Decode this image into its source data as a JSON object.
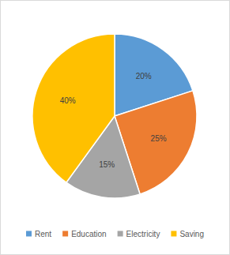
{
  "chart_data": {
    "type": "pie",
    "categories": [
      "Rent",
      "Education",
      "Electricity",
      "Saving"
    ],
    "values": [
      20,
      25,
      15,
      40
    ],
    "value_labels": [
      "20%",
      "25%",
      "15%",
      "40%"
    ],
    "colors": [
      "#5b9bd5",
      "#ed7d31",
      "#a5a5a5",
      "#ffc000"
    ],
    "data_labels": true,
    "legend": "bottom"
  }
}
